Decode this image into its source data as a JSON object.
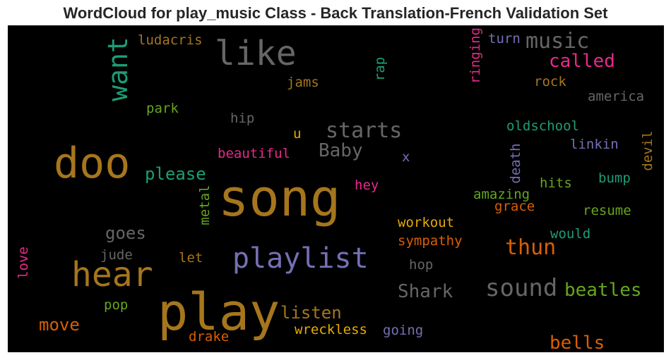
{
  "chart_data": {
    "type": "wordcloud",
    "title": "WordCloud for play_music Class - Back Translation-French Validation Set",
    "background_color": "#000000",
    "words": [
      {
        "text": "song",
        "color": "#a6761d",
        "orientation": "horizontal"
      },
      {
        "text": "play",
        "color": "#a6761d",
        "orientation": "horizontal"
      },
      {
        "text": "doo",
        "color": "#a6761d",
        "orientation": "horizontal"
      },
      {
        "text": "like",
        "color": "#666666",
        "orientation": "horizontal"
      },
      {
        "text": "hear",
        "color": "#a6761d",
        "orientation": "horizontal"
      },
      {
        "text": "playlist",
        "color": "#7570b3",
        "orientation": "horizontal"
      },
      {
        "text": "want",
        "color": "#1b9e77",
        "orientation": "vertical"
      },
      {
        "text": "sound",
        "color": "#666666",
        "orientation": "horizontal"
      },
      {
        "text": "starts",
        "color": "#666666",
        "orientation": "horizontal"
      },
      {
        "text": "music",
        "color": "#666666",
        "orientation": "horizontal"
      },
      {
        "text": "called",
        "color": "#e7298a",
        "orientation": "horizontal"
      },
      {
        "text": "thun",
        "color": "#d95f02",
        "orientation": "horizontal"
      },
      {
        "text": "beatles",
        "color": "#66a61e",
        "orientation": "horizontal"
      },
      {
        "text": "Baby",
        "color": "#666666",
        "orientation": "horizontal"
      },
      {
        "text": "Shark",
        "color": "#666666",
        "orientation": "horizontal"
      },
      {
        "text": "listen",
        "color": "#a6761d",
        "orientation": "horizontal"
      },
      {
        "text": "goes",
        "color": "#666666",
        "orientation": "horizontal"
      },
      {
        "text": "please",
        "color": "#1b9e77",
        "orientation": "horizontal"
      },
      {
        "text": "move",
        "color": "#d95f02",
        "orientation": "horizontal"
      },
      {
        "text": "bells",
        "color": "#d95f02",
        "orientation": "horizontal"
      },
      {
        "text": "ludacris",
        "color": "#a6761d",
        "orientation": "horizontal"
      },
      {
        "text": "jams",
        "color": "#a6761d",
        "orientation": "horizontal"
      },
      {
        "text": "rap",
        "color": "#1b9e77",
        "orientation": "vertical"
      },
      {
        "text": "ringing",
        "color": "#e7298a",
        "orientation": "vertical"
      },
      {
        "text": "turn",
        "color": "#7570b3",
        "orientation": "horizontal"
      },
      {
        "text": "rock",
        "color": "#a6761d",
        "orientation": "horizontal"
      },
      {
        "text": "america",
        "color": "#666666",
        "orientation": "horizontal"
      },
      {
        "text": "park",
        "color": "#66a61e",
        "orientation": "horizontal"
      },
      {
        "text": "hip",
        "color": "#666666",
        "orientation": "horizontal"
      },
      {
        "text": "u",
        "color": "#e6ab02",
        "orientation": "horizontal"
      },
      {
        "text": "oldschool",
        "color": "#1b9e77",
        "orientation": "horizontal"
      },
      {
        "text": "linkin",
        "color": "#7570b3",
        "orientation": "horizontal"
      },
      {
        "text": "devil",
        "color": "#a6761d",
        "orientation": "vertical"
      },
      {
        "text": "beautiful",
        "color": "#e7298a",
        "orientation": "horizontal"
      },
      {
        "text": "x",
        "color": "#7570b3",
        "orientation": "horizontal"
      },
      {
        "text": "death",
        "color": "#7570b3",
        "orientation": "vertical"
      },
      {
        "text": "hey",
        "color": "#e7298a",
        "orientation": "horizontal"
      },
      {
        "text": "hits",
        "color": "#66a61e",
        "orientation": "horizontal"
      },
      {
        "text": "bump",
        "color": "#1b9e77",
        "orientation": "horizontal"
      },
      {
        "text": "amazing",
        "color": "#66a61e",
        "orientation": "horizontal"
      },
      {
        "text": "grace",
        "color": "#d95f02",
        "orientation": "horizontal"
      },
      {
        "text": "metal",
        "color": "#66a61e",
        "orientation": "vertical"
      },
      {
        "text": "resume",
        "color": "#66a61e",
        "orientation": "horizontal"
      },
      {
        "text": "workout",
        "color": "#e6ab02",
        "orientation": "horizontal"
      },
      {
        "text": "would",
        "color": "#1b9e77",
        "orientation": "horizontal"
      },
      {
        "text": "sympathy",
        "color": "#d95f02",
        "orientation": "horizontal"
      },
      {
        "text": "jude",
        "color": "#666666",
        "orientation": "horizontal"
      },
      {
        "text": "let",
        "color": "#a6761d",
        "orientation": "horizontal"
      },
      {
        "text": "love",
        "color": "#e7298a",
        "orientation": "vertical"
      },
      {
        "text": "hop",
        "color": "#666666",
        "orientation": "horizontal"
      },
      {
        "text": "pop",
        "color": "#66a61e",
        "orientation": "horizontal"
      },
      {
        "text": "wreckless",
        "color": "#e6ab02",
        "orientation": "horizontal"
      },
      {
        "text": "going",
        "color": "#7570b3",
        "orientation": "horizontal"
      },
      {
        "text": "drake",
        "color": "#d95f02",
        "orientation": "horizontal"
      }
    ]
  }
}
